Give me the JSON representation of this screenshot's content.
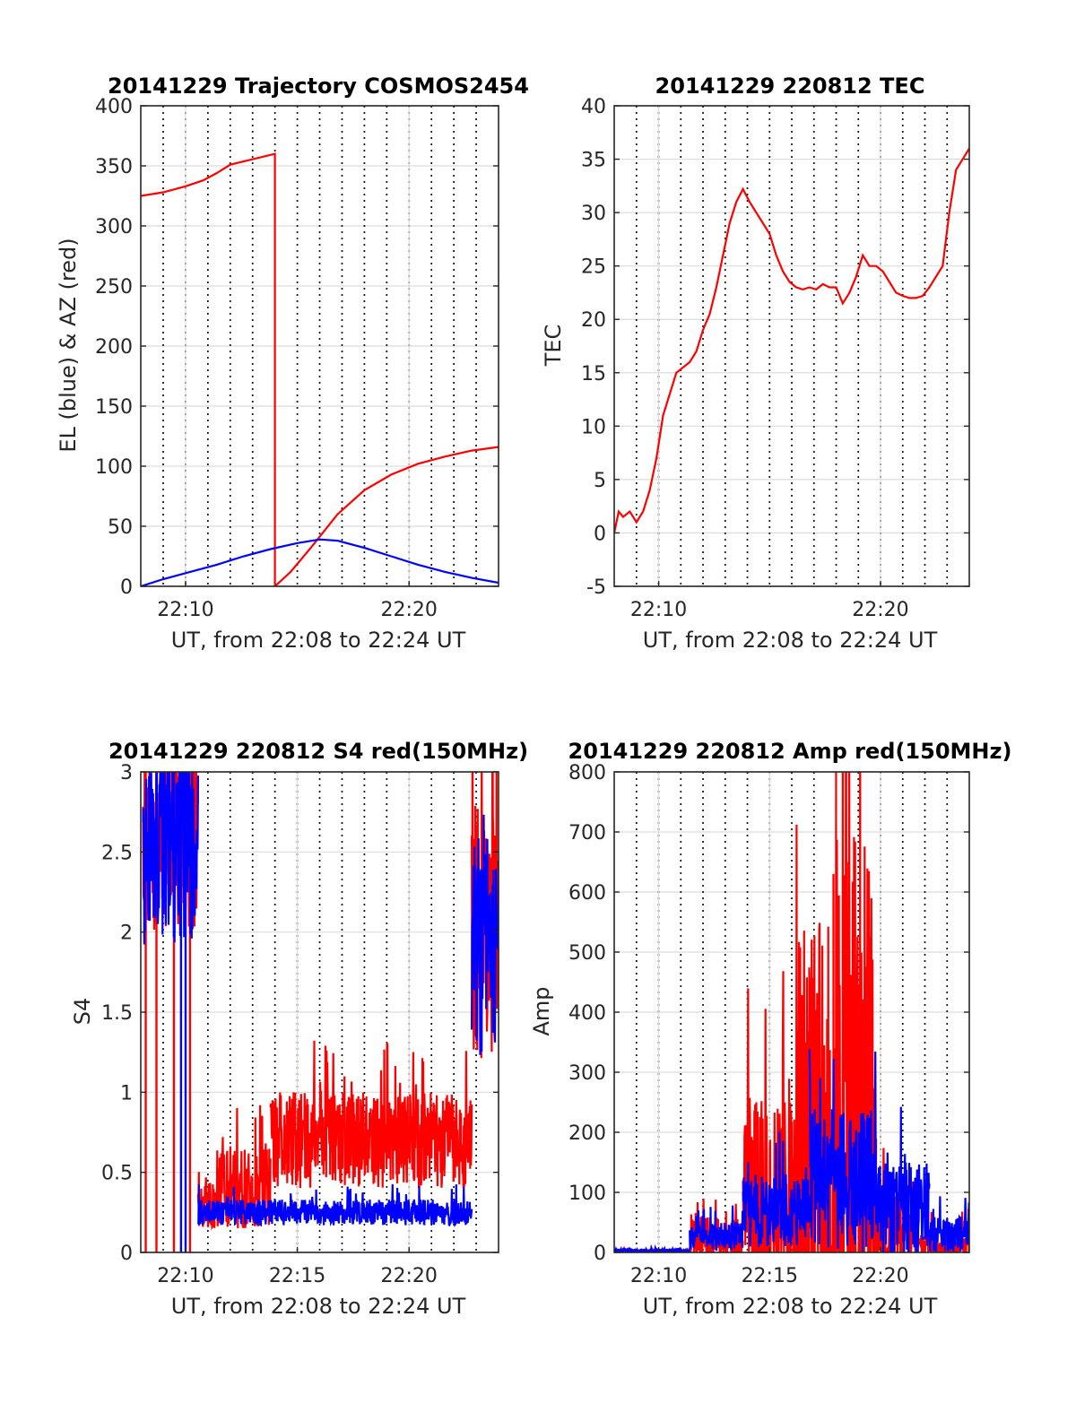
{
  "chart_data": [
    {
      "type": "line",
      "title": "20141229 Trajectory COSMOS2454",
      "xlabel": "UT, from 22:08 to 22:24 UT",
      "ylabel": "EL (blue) & AZ (red)",
      "xlim": [
        22.1333,
        22.4
      ],
      "ylim": [
        0,
        400
      ],
      "x_ticks": [
        {
          "value": 22.1667,
          "label": "22:10"
        },
        {
          "value": 22.3333,
          "label": "22:20"
        }
      ],
      "y_ticks": [
        0,
        50,
        100,
        150,
        200,
        250,
        300,
        350,
        400
      ],
      "grid": true,
      "series": [
        {
          "color": "#ff0000",
          "style": "line",
          "points": [
            [
              22.1333,
              325
            ],
            [
              22.15,
              328
            ],
            [
              22.1667,
              333
            ],
            [
              22.18,
              338
            ],
            [
              22.19,
              344
            ],
            [
              22.2,
              351
            ],
            [
              22.2333,
              360
            ],
            [
              22.2333,
              0
            ],
            [
              22.245,
              12
            ],
            [
              22.26,
              32
            ],
            [
              22.28,
              60
            ],
            [
              22.3,
              80
            ],
            [
              22.32,
              93
            ],
            [
              22.34,
              102
            ],
            [
              22.36,
              108
            ],
            [
              22.38,
              113
            ],
            [
              22.4,
              116
            ]
          ]
        },
        {
          "color": "#0000ff",
          "style": "line",
          "points": [
            [
              22.1333,
              0
            ],
            [
              22.15,
              6
            ],
            [
              22.1667,
              11
            ],
            [
              22.19,
              18
            ],
            [
              22.21,
              25
            ],
            [
              22.23,
              31
            ],
            [
              22.25,
              36
            ],
            [
              22.2667,
              39
            ],
            [
              22.28,
              38
            ],
            [
              22.3,
              32
            ],
            [
              22.32,
              25
            ],
            [
              22.34,
              18
            ],
            [
              22.36,
              12
            ],
            [
              22.38,
              7
            ],
            [
              22.4,
              3
            ]
          ]
        }
      ]
    },
    {
      "type": "line",
      "title": "20141229 220812 TEC",
      "xlabel": "UT, from 22:08 to 22:24 UT",
      "ylabel": "TEC",
      "xlim": [
        22.1333,
        22.4
      ],
      "ylim": [
        -5,
        40
      ],
      "x_ticks": [
        {
          "value": 22.1667,
          "label": "22:10"
        },
        {
          "value": 22.3333,
          "label": "22:20"
        }
      ],
      "y_ticks": [
        -5,
        0,
        5,
        10,
        15,
        20,
        25,
        30,
        35,
        40
      ],
      "grid": true,
      "series": [
        {
          "color": "#ff0000",
          "style": "line",
          "points": [
            [
              22.1333,
              0
            ],
            [
              22.1367,
              2
            ],
            [
              22.14,
              1.5
            ],
            [
              22.145,
              2
            ],
            [
              22.15,
              1
            ],
            [
              22.155,
              2
            ],
            [
              22.16,
              4
            ],
            [
              22.165,
              7
            ],
            [
              22.17,
              11
            ],
            [
              22.175,
              13
            ],
            [
              22.18,
              15
            ],
            [
              22.185,
              15.5
            ],
            [
              22.19,
              16
            ],
            [
              22.195,
              17
            ],
            [
              22.2,
              19
            ],
            [
              22.205,
              20.5
            ],
            [
              22.21,
              23
            ],
            [
              22.215,
              26
            ],
            [
              22.22,
              29
            ],
            [
              22.225,
              31
            ],
            [
              22.23,
              32.2
            ],
            [
              22.235,
              31
            ],
            [
              22.24,
              30
            ],
            [
              22.245,
              29
            ],
            [
              22.25,
              28
            ],
            [
              22.255,
              26
            ],
            [
              22.26,
              24.5
            ],
            [
              22.265,
              23.5
            ],
            [
              22.27,
              23
            ],
            [
              22.275,
              22.8
            ],
            [
              22.28,
              23
            ],
            [
              22.285,
              22.8
            ],
            [
              22.29,
              23.3
            ],
            [
              22.295,
              23
            ],
            [
              22.3,
              23
            ],
            [
              22.305,
              21.5
            ],
            [
              22.31,
              22.5
            ],
            [
              22.315,
              24
            ],
            [
              22.32,
              26
            ],
            [
              22.325,
              25
            ],
            [
              22.33,
              25
            ],
            [
              22.335,
              24.5
            ],
            [
              22.34,
              23.5
            ],
            [
              22.345,
              22.5
            ],
            [
              22.35,
              22.2
            ],
            [
              22.355,
              22
            ],
            [
              22.36,
              22
            ],
            [
              22.365,
              22.2
            ],
            [
              22.37,
              23
            ],
            [
              22.375,
              24
            ],
            [
              22.38,
              25
            ],
            [
              22.385,
              30
            ],
            [
              22.39,
              34
            ],
            [
              22.395,
              35
            ],
            [
              22.4,
              36
            ]
          ]
        }
      ]
    },
    {
      "type": "line",
      "title": "20141229 220812 S4 red(150MHz)",
      "xlabel": "UT, from 22:08 to 22:24 UT",
      "ylabel": "S4",
      "xlim": [
        22.1333,
        22.4
      ],
      "ylim": [
        0,
        3
      ],
      "x_ticks": [
        {
          "value": 22.1667,
          "label": "22:10"
        },
        {
          "value": 22.25,
          "label": "22:15"
        },
        {
          "value": 22.3333,
          "label": "22:20"
        }
      ],
      "y_ticks": [
        0,
        0.5,
        1,
        1.5,
        2,
        2.5,
        3
      ],
      "grid": true,
      "series": [
        {
          "color": "#ff0000",
          "style": "noise",
          "segments": [
            {
              "x": [
                22.135,
                22.176
              ],
              "base": 2.6,
              "amp": 0.6,
              "spikes": [
                22.137,
                22.145,
                22.158,
                22.17
              ]
            },
            {
              "x": [
                22.176,
                22.19
              ],
              "base": 0.3,
              "amp": 0.15
            },
            {
              "x": [
                22.19,
                22.23
              ],
              "base": 0.4,
              "amp": 0.25
            },
            {
              "x": [
                22.23,
                22.38
              ],
              "base": 0.7,
              "amp": 0.3
            },
            {
              "x": [
                22.38,
                22.4
              ],
              "base": 2.0,
              "amp": 0.8
            }
          ]
        },
        {
          "color": "#0000ff",
          "style": "noise",
          "segments": [
            {
              "x": [
                22.135,
                22.176
              ],
              "base": 2.5,
              "amp": 0.6,
              "spikes": [
                22.1633,
                22.1667
              ]
            },
            {
              "x": [
                22.176,
                22.38
              ],
              "base": 0.25,
              "amp": 0.08
            },
            {
              "x": [
                22.38,
                22.4
              ],
              "base": 1.9,
              "amp": 0.7
            }
          ]
        }
      ]
    },
    {
      "type": "line",
      "title": "20141229 220812 Amp red(150MHz)",
      "xlabel": "UT, from 22:08 to 22:24 UT",
      "ylabel": "Amp",
      "xlim": [
        22.1333,
        22.4
      ],
      "ylim": [
        0,
        800
      ],
      "x_ticks": [
        {
          "value": 22.1667,
          "label": "22:10"
        },
        {
          "value": 22.25,
          "label": "22:15"
        },
        {
          "value": 22.3333,
          "label": "22:20"
        }
      ],
      "y_ticks": [
        0,
        100,
        200,
        300,
        400,
        500,
        600,
        700,
        800
      ],
      "grid": true,
      "series": [
        {
          "color": "#ff0000",
          "style": "noise",
          "segments": [
            {
              "x": [
                22.1333,
                22.19
              ],
              "base": 2,
              "amp": 2
            },
            {
              "x": [
                22.19,
                22.23
              ],
              "base": 20,
              "amp": 40
            },
            {
              "x": [
                22.23,
                22.27
              ],
              "base": 80,
              "amp": 180
            },
            {
              "x": [
                22.27,
                22.3
              ],
              "base": 150,
              "amp": 400,
              "spikes": [
                22.298
              ]
            },
            {
              "x": [
                22.3,
                22.33
              ],
              "base": 200,
              "amp": 500,
              "spikes": [
                22.305,
                22.318
              ]
            },
            {
              "x": [
                22.33,
                22.36
              ],
              "base": 30,
              "amp": 80
            },
            {
              "x": [
                22.36,
                22.4
              ],
              "base": 10,
              "amp": 30
            }
          ]
        },
        {
          "color": "#0000ff",
          "style": "noise",
          "segments": [
            {
              "x": [
                22.1333,
                22.19
              ],
              "base": 3,
              "amp": 3
            },
            {
              "x": [
                22.19,
                22.23
              ],
              "base": 25,
              "amp": 25
            },
            {
              "x": [
                22.23,
                22.28
              ],
              "base": 70,
              "amp": 60
            },
            {
              "x": [
                22.28,
                22.33
              ],
              "base": 120,
              "amp": 120
            },
            {
              "x": [
                22.33,
                22.37
              ],
              "base": 70,
              "amp": 80
            },
            {
              "x": [
                22.37,
                22.4
              ],
              "base": 30,
              "amp": 30
            }
          ]
        }
      ]
    }
  ]
}
